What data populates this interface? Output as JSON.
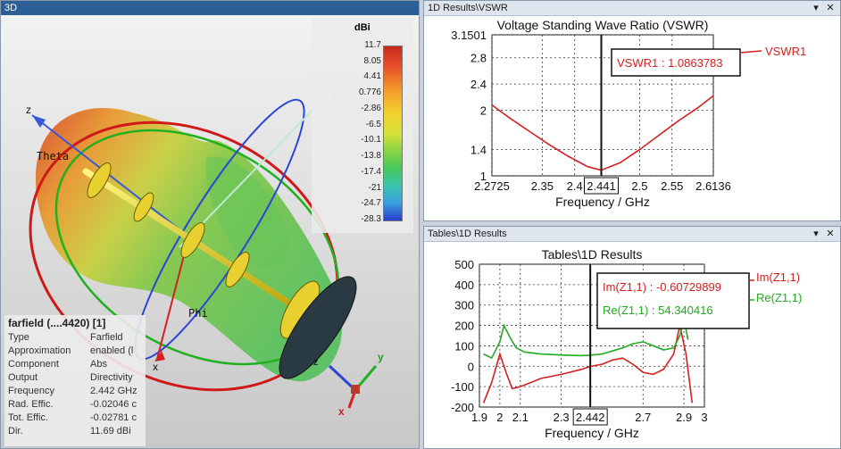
{
  "panel_3d": {
    "title": "3D",
    "colorbar": {
      "unit": "dBi",
      "ticks": [
        "11.7",
        "8.05",
        "4.41",
        "0.776",
        "-2.86",
        "-6.5",
        "-10.1",
        "-13.8",
        "-17.4",
        "-21",
        "-24.7",
        "-28.3"
      ]
    },
    "axis_labels": {
      "z": "z",
      "y": "y",
      "theta": "Theta",
      "phi": "Phi",
      "x": "x"
    },
    "triad_labels": {
      "z": "z",
      "y": "y",
      "x": "x"
    },
    "info": {
      "header": "farfield (....4420) [1]",
      "rows": [
        {
          "k": "Type",
          "v": "Farfield"
        },
        {
          "k": "Approximation",
          "v": "enabled (l"
        },
        {
          "k": "Component",
          "v": "Abs"
        },
        {
          "k": "Output",
          "v": "Directivity"
        },
        {
          "k": "Frequency",
          "v": "2.442 GHz"
        },
        {
          "k": "Rad. Effic.",
          "v": "-0.02046 c"
        },
        {
          "k": "Tot. Effic.",
          "v": "-0.02781 c"
        },
        {
          "k": "Dir.",
          "v": "11.69 dBi"
        }
      ]
    }
  },
  "panel_vswr": {
    "title": "1D Results\\VSWR",
    "btn_dropdown": "▾",
    "btn_close": "✕"
  },
  "panel_tables": {
    "title": "Tables\\1D Results",
    "btn_dropdown": "▾",
    "btn_close": "✕"
  },
  "chart_data": [
    {
      "type": "line",
      "title": "Voltage Standing Wave Ratio (VSWR)",
      "xlabel": "Frequency / GHz",
      "ylabel": "",
      "xlim": [
        2.2725,
        2.6136
      ],
      "ylim": [
        1,
        3.1501
      ],
      "x_ticks": [
        "2.2725",
        "2.35",
        "2.4",
        "2.5",
        "2.55",
        "2.6136"
      ],
      "y_ticks": [
        "3.1501",
        "2.8",
        "2.4",
        "2",
        "1.4",
        "1"
      ],
      "marker": {
        "x": 2.441,
        "label": "2.441",
        "readout": "VSWR1 : 1.0863783"
      },
      "series": [
        {
          "name": "VSWR1",
          "color": "#d42020",
          "x": [
            2.2725,
            2.3,
            2.33,
            2.36,
            2.39,
            2.42,
            2.441,
            2.47,
            2.5,
            2.53,
            2.56,
            2.59,
            2.6136
          ],
          "y": [
            2.08,
            1.88,
            1.68,
            1.48,
            1.3,
            1.14,
            1.086,
            1.2,
            1.4,
            1.62,
            1.84,
            2.04,
            2.22
          ]
        }
      ],
      "grid": true
    },
    {
      "type": "line",
      "title": "Tables\\1D Results",
      "xlabel": "Frequency / GHz",
      "ylabel": "",
      "xlim": [
        1.9,
        3
      ],
      "ylim": [
        -200,
        500
      ],
      "x_ticks": [
        "1.9",
        "2",
        "2.1",
        "2.3",
        "2.7",
        "2.9",
        "3"
      ],
      "y_ticks": [
        "500",
        "400",
        "300",
        "200",
        "100",
        "0",
        "-100",
        "-200"
      ],
      "marker": {
        "x": 2.442,
        "label": "2.442",
        "readouts": [
          "Im(Z1,1) : -0.60729899",
          "Re(Z1,1) : 54.340416"
        ]
      },
      "series": [
        {
          "name": "Im(Z1,1)",
          "color": "#d42020",
          "x": [
            1.92,
            1.96,
            2.0,
            2.03,
            2.06,
            2.1,
            2.15,
            2.2,
            2.3,
            2.4,
            2.442,
            2.5,
            2.55,
            2.6,
            2.65,
            2.7,
            2.75,
            2.8,
            2.85,
            2.88,
            2.91,
            2.94
          ],
          "y": [
            -180,
            -80,
            60,
            -30,
            -110,
            -100,
            -80,
            -60,
            -40,
            -15,
            -1,
            10,
            30,
            40,
            10,
            -30,
            -40,
            -15,
            60,
            200,
            60,
            -180
          ]
        },
        {
          "name": "Re(Z1,1)",
          "color": "#22aa22",
          "x": [
            1.92,
            1.96,
            2.0,
            2.02,
            2.05,
            2.08,
            2.12,
            2.2,
            2.3,
            2.4,
            2.442,
            2.5,
            2.6,
            2.65,
            2.7,
            2.75,
            2.8,
            2.85,
            2.88,
            2.9,
            2.92
          ],
          "y": [
            60,
            40,
            120,
            200,
            140,
            90,
            70,
            60,
            55,
            52,
            54,
            60,
            90,
            110,
            120,
            100,
            80,
            90,
            150,
            230,
            130
          ]
        }
      ],
      "grid": true
    }
  ]
}
